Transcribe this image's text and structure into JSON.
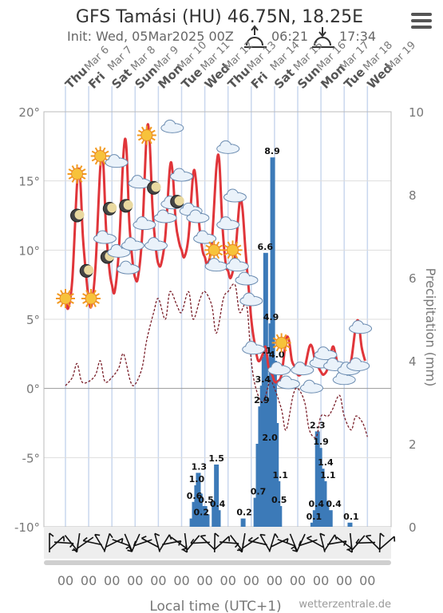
{
  "header": {
    "title": "GFS Tamási (HU) 46.75N, 18.25E",
    "init": "Init: Wed, 05Mar2025 00Z",
    "sunrise": "06:21",
    "sunset": "17:34"
  },
  "credit": "wetterzentrale.de",
  "chart_data": {
    "type": "line",
    "xlabel": "Local time (UTC+1)",
    "ylabel_right": "Precipitation (mm)",
    "ylim_left": [
      -10,
      20
    ],
    "ylim_right": [
      0,
      10
    ],
    "yticks_left": [
      "20°",
      "15°",
      "10°",
      "5°",
      "0°",
      "-5°",
      "-10°"
    ],
    "yticks_right": [
      "10",
      "8",
      "6",
      "4",
      "2",
      "0"
    ],
    "days": [
      {
        "dow": "Thu",
        "date": "Mar 6"
      },
      {
        "dow": "Fri",
        "date": "Mar 7"
      },
      {
        "dow": "Sat",
        "date": "Mar 8"
      },
      {
        "dow": "Sun",
        "date": "Mar 9"
      },
      {
        "dow": "Mon",
        "date": "Mar 10"
      },
      {
        "dow": "Tue",
        "date": "Mar 11"
      },
      {
        "dow": "Wed",
        "date": "Mar 12"
      },
      {
        "dow": "Thu",
        "date": "Mar 13"
      },
      {
        "dow": "Fri",
        "date": "Mar 14"
      },
      {
        "dow": "Sat",
        "date": "Mar 15"
      },
      {
        "dow": "Sun",
        "date": "Mar 16"
      },
      {
        "dow": "Mon",
        "date": "Mar 17"
      },
      {
        "dow": "Tue",
        "date": "Mar 18"
      },
      {
        "dow": "Wed",
        "date": "Mar 19"
      }
    ],
    "x_tick_label": "00",
    "temperature": [
      [
        0,
        6.5
      ],
      [
        0.12,
        5.8
      ],
      [
        0.3,
        8
      ],
      [
        0.5,
        14.8
      ],
      [
        0.62,
        15.5
      ],
      [
        0.75,
        11
      ],
      [
        0.9,
        8
      ],
      [
        1,
        6.5
      ],
      [
        1.12,
        6
      ],
      [
        1.3,
        9
      ],
      [
        1.5,
        16
      ],
      [
        1.62,
        16.5
      ],
      [
        1.75,
        11.5
      ],
      [
        1.9,
        8.5
      ],
      [
        2,
        7.5
      ],
      [
        2.12,
        7
      ],
      [
        2.3,
        10
      ],
      [
        2.5,
        17
      ],
      [
        2.62,
        17.5
      ],
      [
        2.75,
        12
      ],
      [
        2.9,
        9
      ],
      [
        3,
        8
      ],
      [
        3.12,
        8
      ],
      [
        3.3,
        11
      ],
      [
        3.5,
        18.5
      ],
      [
        3.62,
        18
      ],
      [
        3.75,
        13
      ],
      [
        3.9,
        10
      ],
      [
        4,
        9
      ],
      [
        4.12,
        9
      ],
      [
        4.3,
        11
      ],
      [
        4.5,
        16
      ],
      [
        4.62,
        15.5
      ],
      [
        4.75,
        12
      ],
      [
        4.9,
        10.5
      ],
      [
        5,
        10
      ],
      [
        5.12,
        9.5
      ],
      [
        5.3,
        11
      ],
      [
        5.5,
        15.5
      ],
      [
        5.62,
        15
      ],
      [
        5.75,
        12
      ],
      [
        5.9,
        10
      ],
      [
        6,
        9.5
      ],
      [
        6.12,
        9
      ],
      [
        6.3,
        10.5
      ],
      [
        6.5,
        16
      ],
      [
        6.62,
        16.5
      ],
      [
        6.75,
        12
      ],
      [
        6.9,
        9
      ],
      [
        7,
        8.5
      ],
      [
        7.12,
        8
      ],
      [
        7.3,
        9.5
      ],
      [
        7.5,
        13.5
      ],
      [
        7.62,
        13
      ],
      [
        7.75,
        10
      ],
      [
        7.9,
        7
      ],
      [
        8,
        5
      ],
      [
        8.12,
        3.5
      ],
      [
        8.3,
        2
      ],
      [
        8.5,
        2.5
      ],
      [
        8.62,
        3
      ],
      [
        8.75,
        1.5
      ],
      [
        8.9,
        1
      ],
      [
        9,
        0.5
      ],
      [
        9.12,
        0.5
      ],
      [
        9.3,
        1
      ],
      [
        9.5,
        3.5
      ],
      [
        9.62,
        3.5
      ],
      [
        9.75,
        2
      ],
      [
        9.9,
        1.5
      ],
      [
        10,
        1
      ],
      [
        10.12,
        1
      ],
      [
        10.3,
        1.5
      ],
      [
        10.5,
        3
      ],
      [
        10.62,
        3
      ],
      [
        10.75,
        2
      ],
      [
        10.9,
        1.5
      ],
      [
        11,
        1.2
      ],
      [
        11.12,
        1
      ],
      [
        11.3,
        1.5
      ],
      [
        11.5,
        3
      ],
      [
        11.62,
        2.5
      ],
      [
        11.75,
        1.5
      ],
      [
        11.9,
        1
      ],
      [
        12,
        1
      ],
      [
        12.12,
        1.2
      ],
      [
        12.3,
        2
      ],
      [
        12.5,
        4.5
      ],
      [
        12.62,
        4.8
      ],
      [
        12.75,
        3
      ],
      [
        12.9,
        2
      ]
    ],
    "dewpoint": [
      [
        0,
        0.2
      ],
      [
        0.3,
        0.8
      ],
      [
        0.5,
        1.8
      ],
      [
        0.7,
        0.5
      ],
      [
        1,
        0.5
      ],
      [
        1.3,
        1
      ],
      [
        1.5,
        2
      ],
      [
        1.7,
        0.5
      ],
      [
        2,
        0.8
      ],
      [
        2.3,
        1.5
      ],
      [
        2.5,
        2.5
      ],
      [
        2.8,
        0.5
      ],
      [
        3,
        0.3
      ],
      [
        3.3,
        1.5
      ],
      [
        3.5,
        3.5
      ],
      [
        3.8,
        5.5
      ],
      [
        4,
        6.5
      ],
      [
        4.3,
        5
      ],
      [
        4.5,
        7
      ],
      [
        4.8,
        6
      ],
      [
        5,
        5.5
      ],
      [
        5.3,
        7
      ],
      [
        5.5,
        5
      ],
      [
        5.8,
        6.5
      ],
      [
        6,
        7
      ],
      [
        6.3,
        6
      ],
      [
        6.5,
        4
      ],
      [
        6.8,
        6.5
      ],
      [
        7,
        7
      ],
      [
        7.3,
        7.5
      ],
      [
        7.5,
        5.5
      ],
      [
        7.8,
        6
      ],
      [
        8,
        2
      ],
      [
        8.2,
        0
      ],
      [
        8.5,
        -1
      ],
      [
        8.8,
        0.5
      ],
      [
        9,
        0
      ],
      [
        9.3,
        -1.5
      ],
      [
        9.5,
        -3
      ],
      [
        9.8,
        -0.5
      ],
      [
        10,
        0
      ],
      [
        10.3,
        -1
      ],
      [
        10.5,
        -3
      ],
      [
        10.8,
        -3.5
      ],
      [
        11,
        -2
      ],
      [
        11.3,
        -2
      ],
      [
        11.5,
        -1.5
      ],
      [
        11.8,
        -0.5
      ],
      [
        12,
        -2
      ],
      [
        12.3,
        -3
      ],
      [
        12.5,
        -2
      ],
      [
        12.8,
        -2.5
      ],
      [
        13,
        -3.5
      ]
    ],
    "precip_labels": [
      {
        "x": 5.55,
        "v": 0.6
      },
      {
        "x": 5.65,
        "v": 1.0
      },
      {
        "x": 5.75,
        "v": 1.3
      },
      {
        "x": 5.85,
        "v": 0.2
      },
      {
        "x": 6.05,
        "v": 0.5
      },
      {
        "x": 6.5,
        "v": 1.5
      },
      {
        "x": 6.55,
        "v": 0.4
      },
      {
        "x": 7.7,
        "v": 0.2
      },
      {
        "x": 8.3,
        "v": 0.7
      },
      {
        "x": 8.45,
        "v": 2.9
      },
      {
        "x": 8.5,
        "v": 3.4
      },
      {
        "x": 8.55,
        "v": 4.1
      },
      {
        "x": 8.6,
        "v": 6.6
      },
      {
        "x": 8.8,
        "v": 2.0
      },
      {
        "x": 8.85,
        "v": 4.9
      },
      {
        "x": 8.9,
        "v": 8.9
      },
      {
        "x": 9.1,
        "v": 4.0
      },
      {
        "x": 9.25,
        "v": 1.1
      },
      {
        "x": 9.2,
        "v": 0.5
      },
      {
        "x": 10.7,
        "v": 0.1
      },
      {
        "x": 10.8,
        "v": 0.4
      },
      {
        "x": 10.85,
        "v": 2.3
      },
      {
        "x": 11.0,
        "v": 1.9
      },
      {
        "x": 11.2,
        "v": 1.4
      },
      {
        "x": 11.3,
        "v": 1.1
      },
      {
        "x": 11.55,
        "v": 0.4
      },
      {
        "x": 12.3,
        "v": 0.1
      }
    ],
    "precip_bars": [
      [
        5.45,
        0.2
      ],
      [
        5.55,
        0.6
      ],
      [
        5.65,
        1.0
      ],
      [
        5.72,
        1.3
      ],
      [
        5.8,
        0.8
      ],
      [
        5.9,
        0.2
      ],
      [
        6.0,
        0.5
      ],
      [
        6.1,
        0.3
      ],
      [
        6.4,
        0.6
      ],
      [
        6.5,
        1.5
      ],
      [
        6.58,
        0.4
      ],
      [
        7.65,
        0.2
      ],
      [
        8.2,
        0.7
      ],
      [
        8.3,
        2.0
      ],
      [
        8.4,
        2.9
      ],
      [
        8.48,
        3.4
      ],
      [
        8.55,
        4.1
      ],
      [
        8.62,
        6.6
      ],
      [
        8.7,
        3.0
      ],
      [
        8.78,
        2.0
      ],
      [
        8.85,
        4.9
      ],
      [
        8.92,
        8.9
      ],
      [
        9.0,
        4.0
      ],
      [
        9.08,
        2.5
      ],
      [
        9.15,
        1.1
      ],
      [
        9.22,
        0.5
      ],
      [
        10.65,
        0.1
      ],
      [
        10.75,
        0.4
      ],
      [
        10.85,
        2.3
      ],
      [
        10.95,
        1.9
      ],
      [
        11.05,
        1.4
      ],
      [
        11.15,
        1.1
      ],
      [
        11.25,
        0.6
      ],
      [
        11.4,
        0.4
      ],
      [
        12.25,
        0.1
      ]
    ]
  }
}
